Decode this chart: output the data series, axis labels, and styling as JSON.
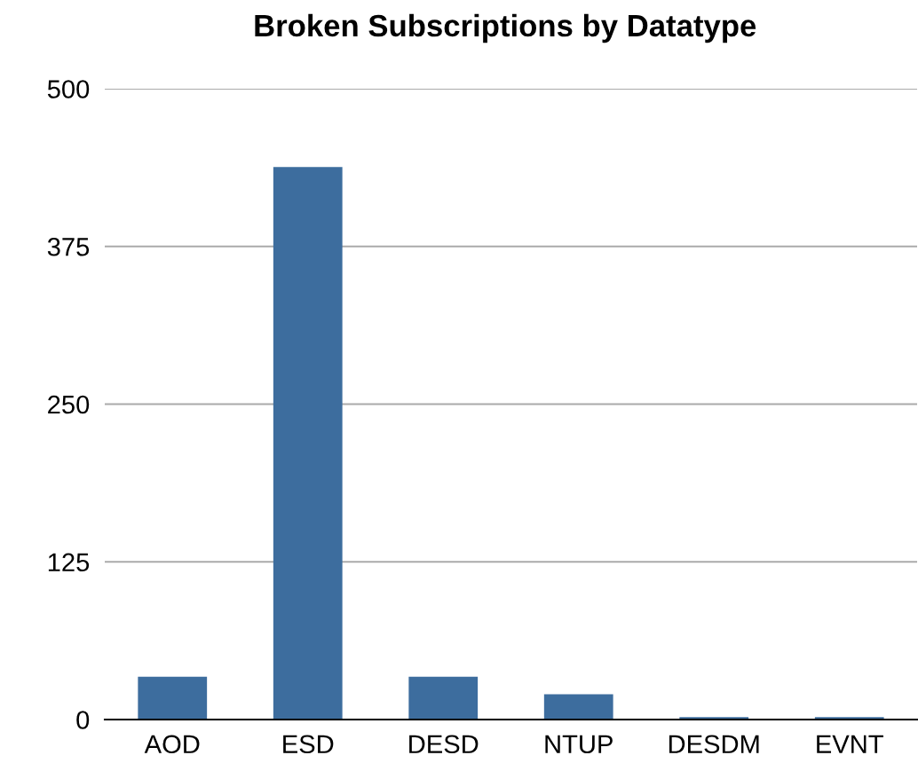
{
  "chart_data": {
    "type": "bar",
    "title": "Broken Subscriptions by Datatype",
    "categories": [
      "AOD",
      "ESD",
      "DESD",
      "NTUP",
      "DESDM",
      "EVNT"
    ],
    "values": [
      34,
      438,
      34,
      20,
      2,
      2
    ],
    "color": "#3d6d9e",
    "ylim": [
      0,
      500
    ],
    "yticks": [
      0,
      125,
      250,
      375,
      500
    ],
    "grid": "y",
    "legend": false
  }
}
